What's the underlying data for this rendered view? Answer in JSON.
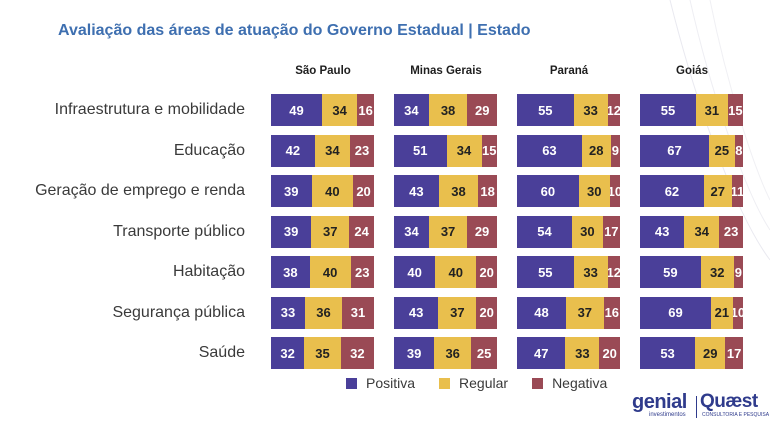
{
  "header": {
    "corner_text": "",
    "title": "Avaliação das áreas de atuação do Governo Estadual | Estado"
  },
  "legend": {
    "items": [
      {
        "label": "Positiva",
        "color": "#4a3f99"
      },
      {
        "label": "Regular",
        "color": "#e9bf4d"
      },
      {
        "label": "Negativa",
        "color": "#9a4a55"
      }
    ]
  },
  "logos": {
    "genial": "genial",
    "genial_sub": "investimentos",
    "quaest": "Quæst",
    "quaest_sub": "CONSULTORIA E PESQUISA"
  },
  "chart_data": {
    "type": "bar",
    "stacked": true,
    "orientation": "horizontal",
    "title": "Avaliação das áreas de atuação do Governo Estadual | Estado",
    "panels": [
      "São Paulo",
      "Minas Gerais",
      "Paraná",
      "Goiás"
    ],
    "categories": [
      "Infraestrutura e mobilidade",
      "Educação",
      "Geração de emprego e renda",
      "Transporte público",
      "Habitação",
      "Segurança pública",
      "Saúde"
    ],
    "series_names": [
      "Positiva",
      "Regular",
      "Negativa"
    ],
    "colors": [
      "#4a3f99",
      "#e9bf4d",
      "#9a4a55"
    ],
    "values": {
      "São Paulo": [
        [
          49,
          34,
          16
        ],
        [
          42,
          34,
          23
        ],
        [
          39,
          40,
          20
        ],
        [
          39,
          37,
          24
        ],
        [
          38,
          40,
          23
        ],
        [
          33,
          36,
          31
        ],
        [
          32,
          35,
          32
        ]
      ],
      "Minas Gerais": [
        [
          34,
          38,
          29
        ],
        [
          51,
          34,
          15
        ],
        [
          43,
          38,
          18
        ],
        [
          34,
          37,
          29
        ],
        [
          40,
          40,
          20
        ],
        [
          43,
          37,
          20
        ],
        [
          39,
          36,
          25
        ]
      ],
      "Paraná": [
        [
          55,
          33,
          12
        ],
        [
          63,
          28,
          9
        ],
        [
          60,
          30,
          10
        ],
        [
          54,
          30,
          17
        ],
        [
          55,
          33,
          12
        ],
        [
          48,
          37,
          16
        ],
        [
          47,
          33,
          20
        ]
      ],
      "Goiás": [
        [
          55,
          31,
          15
        ],
        [
          67,
          25,
          8
        ],
        [
          62,
          27,
          11
        ],
        [
          43,
          34,
          23
        ],
        [
          59,
          32,
          9
        ],
        [
          69,
          21,
          10
        ],
        [
          53,
          29,
          17
        ]
      ]
    },
    "legend_position": "bottom"
  }
}
